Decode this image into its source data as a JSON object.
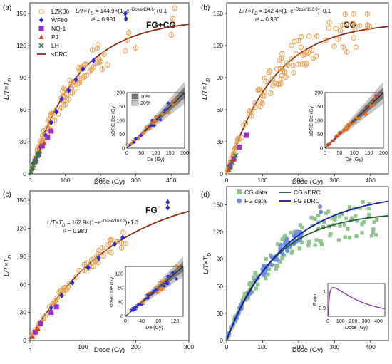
{
  "colors": {
    "lzk06": "#e8a050",
    "wf80": "#2a2ad8",
    "nq1": "#9b2fc4",
    "pj": "#c6412a",
    "lh": "#2e7d4c",
    "sdrc": "#8b2a10",
    "cg_data": "#8cc58a",
    "fg_data": "#6c8fe0",
    "cg_sdrc": "#1f5a32",
    "fg_sdrc": "#1a1aa0",
    "ratio": "#8a32b4",
    "band10": "#7a7a7a",
    "band20": "#c8c8c8"
  },
  "panels": {
    "a": {
      "tag": "(a)",
      "label": "FG+CG",
      "eq_main": "L/T×T",
      "eq_sub": "D",
      "eq_rest": " = 144.9×(1−e",
      "eq_exp": "−Dose/134.6",
      "eq_tail": ")+0.1",
      "r2": "r² = 0.981",
      "xlabel": "Dose (Gy)",
      "ylabel": "L/T×T",
      "ylabel_sub": "D",
      "inset_xlabel": "De (Gy)",
      "inset_ylabel": "sDRC De (Gy)",
      "inset_legend": [
        "10%",
        "20%"
      ],
      "legend": [
        "LZK06",
        "WF80",
        "NQ-1",
        "PJ",
        "LH",
        "sDRC"
      ]
    },
    "b": {
      "tag": "(b)",
      "label": "CG",
      "eq_main": "L/T×T",
      "eq_sub": "D",
      "eq_rest": " = 142.4×(1−e",
      "eq_exp": "−Dose/130.0",
      "eq_tail": ")−0.1",
      "r2": "r² = 0.980",
      "xlabel": "Dose (Gy)",
      "ylabel": "L/T×T",
      "ylabel_sub": "D",
      "inset_xlabel": "De (Gy)",
      "inset_ylabel": "sDRC De (Gy)"
    },
    "c": {
      "tag": "(c)",
      "label": "FG",
      "eq_main": "L/T×T",
      "eq_sub": "D",
      "eq_rest": " = 162.9×(1−e",
      "eq_exp": "−Dose/163.2",
      "eq_tail": ")+1.3",
      "r2": "r² = 0.983",
      "xlabel": "Dose (Gy)",
      "ylabel": "L/T×T",
      "ylabel_sub": "D",
      "inset_xlabel": "De (Gy)",
      "inset_ylabel": "sDRC De (Gy)"
    },
    "d": {
      "tag": "(d)",
      "xlabel": "Dose (Gy)",
      "ylabel": "L/T×T",
      "ylabel_sub": "D",
      "legend": [
        "CG data",
        "CG sDRC",
        "FG data",
        "FG sDRC"
      ],
      "inset_ylabel": "Ratio",
      "inset_xlabel": "Dose (Gy)"
    }
  },
  "chart_data": [
    {
      "panel": "a",
      "type": "scatter",
      "xlim": [
        0,
        450
      ],
      "ylim": [
        0,
        160
      ],
      "xticks": [
        0,
        100,
        200,
        300,
        400
      ],
      "yticks": [
        0,
        30,
        60,
        90,
        120,
        150
      ],
      "curve": {
        "a": 144.9,
        "d0": 134.6,
        "c": 0.1
      },
      "series": [
        {
          "name": "LZK06",
          "marker": "circle",
          "points": [
            [
              5,
              4
            ],
            [
              10,
              8
            ],
            [
              15,
              12
            ],
            [
              20,
              16
            ],
            [
              25,
              20
            ],
            [
              30,
              24
            ],
            [
              35,
              27
            ],
            [
              40,
              31
            ],
            [
              50,
              38
            ],
            [
              55,
              42
            ],
            [
              60,
              45
            ],
            [
              70,
              50
            ],
            [
              80,
              56
            ],
            [
              90,
              62
            ],
            [
              100,
              65
            ],
            [
              110,
              70
            ],
            [
              120,
              76
            ],
            [
              130,
              80
            ],
            [
              140,
              85
            ],
            [
              150,
              90
            ],
            [
              160,
              92
            ],
            [
              170,
              96
            ],
            [
              180,
              100
            ],
            [
              200,
              105
            ],
            [
              205,
              98
            ],
            [
              210,
              112
            ],
            [
              220,
              102
            ],
            [
              270,
              115
            ],
            [
              275,
              125
            ],
            [
              280,
              132
            ],
            [
              300,
              118
            ],
            [
              400,
              130
            ],
            [
              405,
              145
            ],
            [
              410,
              155
            ]
          ]
        },
        {
          "name": "WF80",
          "marker": "diamond",
          "points": [
            [
              10,
              10
            ],
            [
              30,
              25
            ],
            [
              45,
              36
            ],
            [
              60,
              48
            ],
            [
              75,
              58
            ],
            [
              90,
              70
            ],
            [
              110,
              78
            ],
            [
              130,
              88
            ],
            [
              150,
              98
            ],
            [
              180,
              106
            ],
            [
              270,
              150
            ],
            [
              272,
              145
            ]
          ]
        },
        {
          "name": "NQ-1",
          "marker": "square",
          "points": [
            [
              15,
              12
            ],
            [
              25,
              18
            ],
            [
              35,
              26
            ],
            [
              50,
              34
            ],
            [
              60,
              40
            ]
          ]
        },
        {
          "name": "PJ",
          "marker": "triangle",
          "points": [
            [
              8,
              6
            ],
            [
              18,
              14
            ],
            [
              28,
              21
            ],
            [
              40,
              29
            ]
          ]
        },
        {
          "name": "LH",
          "marker": "cross",
          "points": [
            [
              3,
              2
            ],
            [
              6,
              5
            ],
            [
              10,
              8
            ],
            [
              14,
              11
            ],
            [
              18,
              14
            ],
            [
              22,
              17
            ],
            [
              26,
              19
            ]
          ]
        }
      ],
      "inset": {
        "xlim": [
          0,
          200
        ],
        "ylim": [
          0,
          200
        ],
        "xticks": [
          0,
          50,
          100,
          150,
          200
        ],
        "yticks": [
          0,
          50,
          100,
          150,
          200
        ]
      }
    },
    {
      "panel": "b",
      "type": "scatter",
      "xlim": [
        0,
        450
      ],
      "ylim": [
        0,
        160
      ],
      "xticks": [
        0,
        100,
        200,
        300,
        400
      ],
      "yticks": [
        0,
        30,
        60,
        90,
        120,
        150
      ],
      "curve": {
        "a": 142.4,
        "d0": 130.0,
        "c": -0.1
      },
      "inset": {
        "xlim": [
          0,
          200
        ],
        "ylim": [
          0,
          200
        ],
        "xticks": [
          0,
          50,
          100,
          150,
          200
        ],
        "yticks": [
          0,
          50,
          100,
          150,
          200
        ]
      }
    },
    {
      "panel": "c",
      "type": "scatter",
      "xlim": [
        0,
        300
      ],
      "ylim": [
        0,
        160
      ],
      "xticks": [
        0,
        100,
        200,
        300
      ],
      "yticks": [
        0,
        30,
        60,
        90,
        120,
        150
      ],
      "curve": {
        "a": 162.9,
        "d0": 163.2,
        "c": 1.3
      },
      "inset": {
        "xlim": [
          0,
          140
        ],
        "ylim": [
          0,
          140
        ],
        "xticks": [
          0,
          40,
          80,
          120
        ],
        "yticks": [
          0,
          40,
          80,
          120
        ]
      }
    },
    {
      "panel": "d",
      "type": "scatter",
      "xlim": [
        0,
        450
      ],
      "ylim": [
        0,
        170
      ],
      "xticks": [
        0,
        100,
        200,
        300,
        400
      ],
      "yticks": [
        0,
        30,
        60,
        90,
        120,
        150
      ],
      "cg_curve": {
        "a": 142.4,
        "d0": 130.0,
        "c": -0.1
      },
      "fg_curve": {
        "a": 162.9,
        "d0": 163.2,
        "c": 1.3
      },
      "inset": {
        "xlim": [
          0,
          450
        ],
        "ylim": [
          0.85,
          1.05
        ],
        "xticks": [
          0,
          100,
          200,
          300,
          400
        ],
        "yticks": [
          0.9,
          1
        ]
      }
    }
  ]
}
